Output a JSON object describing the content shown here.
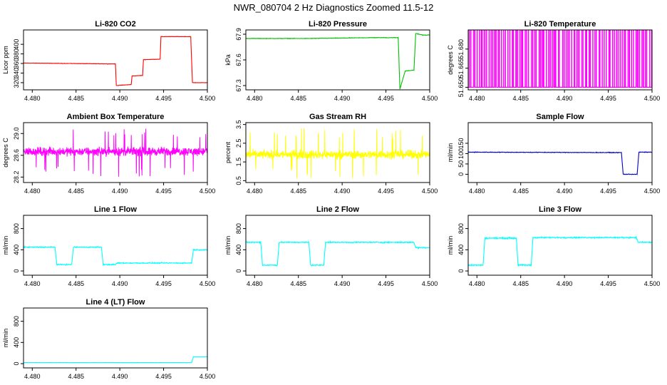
{
  "title": "NWR_080704  2 Hz Diagnostics Zoomed 11.5-12",
  "chart_data": [
    {
      "type": "line",
      "title": "Li-820 CO2",
      "ylabel": "Licor ppm",
      "color": "#ff0000",
      "xlim": [
        4.479,
        4.5
      ],
      "xticks": [
        "4.480",
        "4.485",
        "4.490",
        "4.495",
        "4.500"
      ],
      "ylim": [
        305,
        430
      ],
      "yticks": [
        "320",
        "340",
        "360",
        "380",
        "400"
      ],
      "noise": 0.5,
      "x": [
        4.479,
        4.4895,
        4.4896,
        4.4913,
        4.4914,
        4.4926,
        4.4927,
        4.4946,
        4.4947,
        4.4981,
        4.4983,
        4.5
      ],
      "y": [
        361,
        359,
        314,
        316,
        334,
        335,
        368,
        369,
        416,
        416,
        320,
        320
      ]
    },
    {
      "type": "line",
      "title": "Li-820 Pressure",
      "ylabel": "kPa",
      "color": "#00c000",
      "xlim": [
        4.479,
        4.5
      ],
      "xticks": [
        "4.480",
        "4.485",
        "4.490",
        "4.495",
        "4.500"
      ],
      "ylim": [
        67.25,
        67.95
      ],
      "yticks": [
        "67.3",
        "67.6",
        "67.9"
      ],
      "noise": 0.004,
      "x": [
        4.479,
        4.486,
        4.4935,
        4.4936,
        4.4964,
        4.4966,
        4.4972,
        4.4982,
        4.4984,
        4.4992,
        4.5
      ],
      "y": [
        67.85,
        67.85,
        67.86,
        67.86,
        67.86,
        67.26,
        67.47,
        67.48,
        67.91,
        67.89,
        67.89
      ]
    },
    {
      "type": "spikes",
      "title": "Li-820 Temperature",
      "ylabel": "degrees C",
      "color": "#ff00ff",
      "xlim": [
        4.479,
        4.5
      ],
      "xticks": [
        "4.480",
        "4.485",
        "4.490",
        "4.495",
        "4.500"
      ],
      "ylim": [
        51.648,
        51.695
      ],
      "yticks": [
        "51.650",
        "51.665",
        "51.680"
      ],
      "baseline": 51.65,
      "peak": 51.695,
      "count": 95
    },
    {
      "type": "noise",
      "title": "Ambient Box Temperature",
      "ylabel": "degrees C",
      "color": "#ff00ff",
      "xlim": [
        4.479,
        4.5
      ],
      "xticks": [
        "4.480",
        "4.485",
        "4.490",
        "4.495",
        "4.500"
      ],
      "ylim": [
        28.1,
        29.2
      ],
      "yticks": [
        "28.2",
        "28.6",
        "29.0"
      ],
      "center": 28.67,
      "amplitude": 0.11,
      "spike_max": 29.1,
      "spike_min": 28.2,
      "samples": 900
    },
    {
      "type": "noise",
      "title": "Gas Stream RH",
      "ylabel": "percent",
      "color": "#ffff00",
      "xlim": [
        4.479,
        4.5
      ],
      "xticks": [
        "4.480",
        "4.485",
        "4.490",
        "4.495",
        "4.500"
      ],
      "ylim": [
        0.4,
        3.6
      ],
      "yticks": [
        "0.5",
        "1.5",
        "2.5",
        "3.5"
      ],
      "center": 1.9,
      "amplitude": 0.32,
      "spike_max": 3.3,
      "spike_min": 0.6,
      "samples": 900
    },
    {
      "type": "line",
      "title": "Sample Flow",
      "ylabel": "ml/min",
      "color": "#0000c8",
      "xlim": [
        4.479,
        4.5
      ],
      "xticks": [
        "4.480",
        "4.485",
        "4.490",
        "4.495",
        "4.500"
      ],
      "ylim": [
        -40,
        250
      ],
      "yticks": [
        "0",
        "50",
        "100",
        "150"
      ],
      "noise": 2,
      "x": [
        4.479,
        4.4965,
        4.4967,
        4.4983,
        4.4985,
        4.5
      ],
      "y": [
        107,
        105,
        0,
        0,
        107,
        107
      ]
    },
    {
      "type": "line",
      "title": "Line 1 Flow",
      "ylabel": "ml/min",
      "color": "#00ffff",
      "xlim": [
        4.479,
        4.5
      ],
      "xticks": [
        "4.480",
        "4.485",
        "4.490",
        "4.495",
        "4.500"
      ],
      "ylim": [
        -80,
        1050
      ],
      "yticks": [
        "0",
        "400",
        "800"
      ],
      "noise": 14,
      "x": [
        4.479,
        4.4826,
        4.4828,
        4.4845,
        4.4847,
        4.4879,
        4.4881,
        4.4895,
        4.4897,
        4.4982,
        4.4984,
        4.5
      ],
      "y": [
        450,
        450,
        120,
        120,
        450,
        450,
        120,
        120,
        150,
        150,
        400,
        400
      ]
    },
    {
      "type": "line",
      "title": "Line 2 Flow",
      "ylabel": "ml/min",
      "color": "#00ffff",
      "xlim": [
        4.479,
        4.5
      ],
      "xticks": [
        "4.480",
        "4.485",
        "4.490",
        "4.495",
        "4.500"
      ],
      "ylim": [
        -80,
        1050
      ],
      "yticks": [
        "0",
        "400",
        "800"
      ],
      "noise": 16,
      "x": [
        4.479,
        4.4807,
        4.4809,
        4.4826,
        4.4828,
        4.4862,
        4.4864,
        4.4879,
        4.4881,
        4.4982,
        4.4984,
        4.5
      ],
      "y": [
        540,
        540,
        110,
        110,
        540,
        540,
        110,
        110,
        540,
        540,
        440,
        440
      ]
    },
    {
      "type": "line",
      "title": "Line 3 Flow",
      "ylabel": "ml/min",
      "color": "#00ffff",
      "xlim": [
        4.479,
        4.5
      ],
      "xticks": [
        "4.480",
        "4.485",
        "4.490",
        "4.495",
        "4.500"
      ],
      "ylim": [
        -80,
        1050
      ],
      "yticks": [
        "0",
        "400",
        "800"
      ],
      "noise": 18,
      "x": [
        4.479,
        4.4807,
        4.4809,
        4.4845,
        4.4847,
        4.4862,
        4.4864,
        4.4982,
        4.4984,
        4.5
      ],
      "y": [
        110,
        110,
        620,
        620,
        110,
        110,
        630,
        630,
        540,
        540
      ]
    },
    {
      "type": "line",
      "title": "Line 4 (LT) Flow",
      "ylabel": "ml/min",
      "color": "#00ffff",
      "xlim": [
        4.479,
        4.5
      ],
      "xticks": [
        "4.480",
        "4.485",
        "4.490",
        "4.495",
        "4.500"
      ],
      "ylim": [
        -80,
        1050
      ],
      "yticks": [
        "0",
        "400",
        "800"
      ],
      "noise": 3,
      "x": [
        4.479,
        4.4982,
        4.4984,
        4.5
      ],
      "y": [
        20,
        20,
        130,
        130
      ]
    }
  ]
}
